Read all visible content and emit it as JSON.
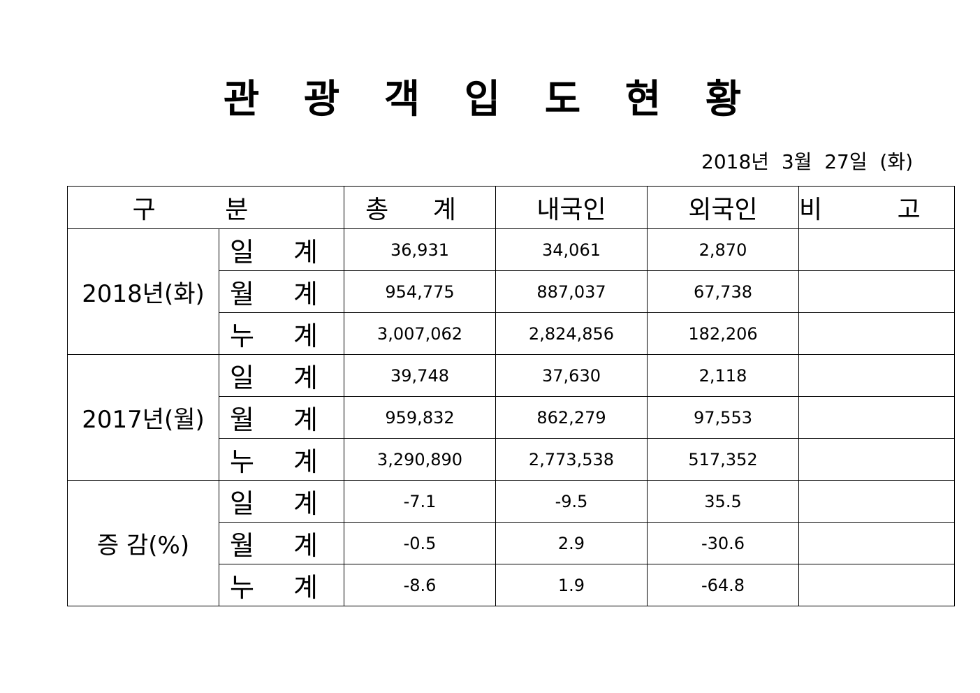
{
  "title": "관 광 객 입 도 현 황",
  "date": "2018년  3월  27일  (화)",
  "table": {
    "headers": {
      "category": "구 분",
      "total": "총 계",
      "domestic": "내국인",
      "foreign": "외국인",
      "note": "비 고"
    },
    "groups": [
      {
        "label": "2018년(화)",
        "rows": [
          {
            "sub": "일 계",
            "total": "36,931",
            "domestic": "34,061",
            "foreign": "2,870",
            "note": ""
          },
          {
            "sub": "월 계",
            "total": "954,775",
            "domestic": "887,037",
            "foreign": "67,738",
            "note": ""
          },
          {
            "sub": "누 계",
            "total": "3,007,062",
            "domestic": "2,824,856",
            "foreign": "182,206",
            "note": ""
          }
        ]
      },
      {
        "label": "2017년(월)",
        "rows": [
          {
            "sub": "일 계",
            "total": "39,748",
            "domestic": "37,630",
            "foreign": "2,118",
            "note": ""
          },
          {
            "sub": "월 계",
            "total": "959,832",
            "domestic": "862,279",
            "foreign": "97,553",
            "note": ""
          },
          {
            "sub": "누 계",
            "total": "3,290,890",
            "domestic": "2,773,538",
            "foreign": "517,352",
            "note": ""
          }
        ]
      },
      {
        "label": "증 감(%)",
        "rows": [
          {
            "sub": "일 계",
            "total": "-7.1",
            "domestic": "-9.5",
            "foreign": "35.5",
            "note": ""
          },
          {
            "sub": "월 계",
            "total": "-0.5",
            "domestic": "2.9",
            "foreign": "-30.6",
            "note": ""
          },
          {
            "sub": "누 계",
            "total": "-8.6",
            "domestic": "1.9",
            "foreign": "-64.8",
            "note": ""
          }
        ]
      }
    ]
  }
}
